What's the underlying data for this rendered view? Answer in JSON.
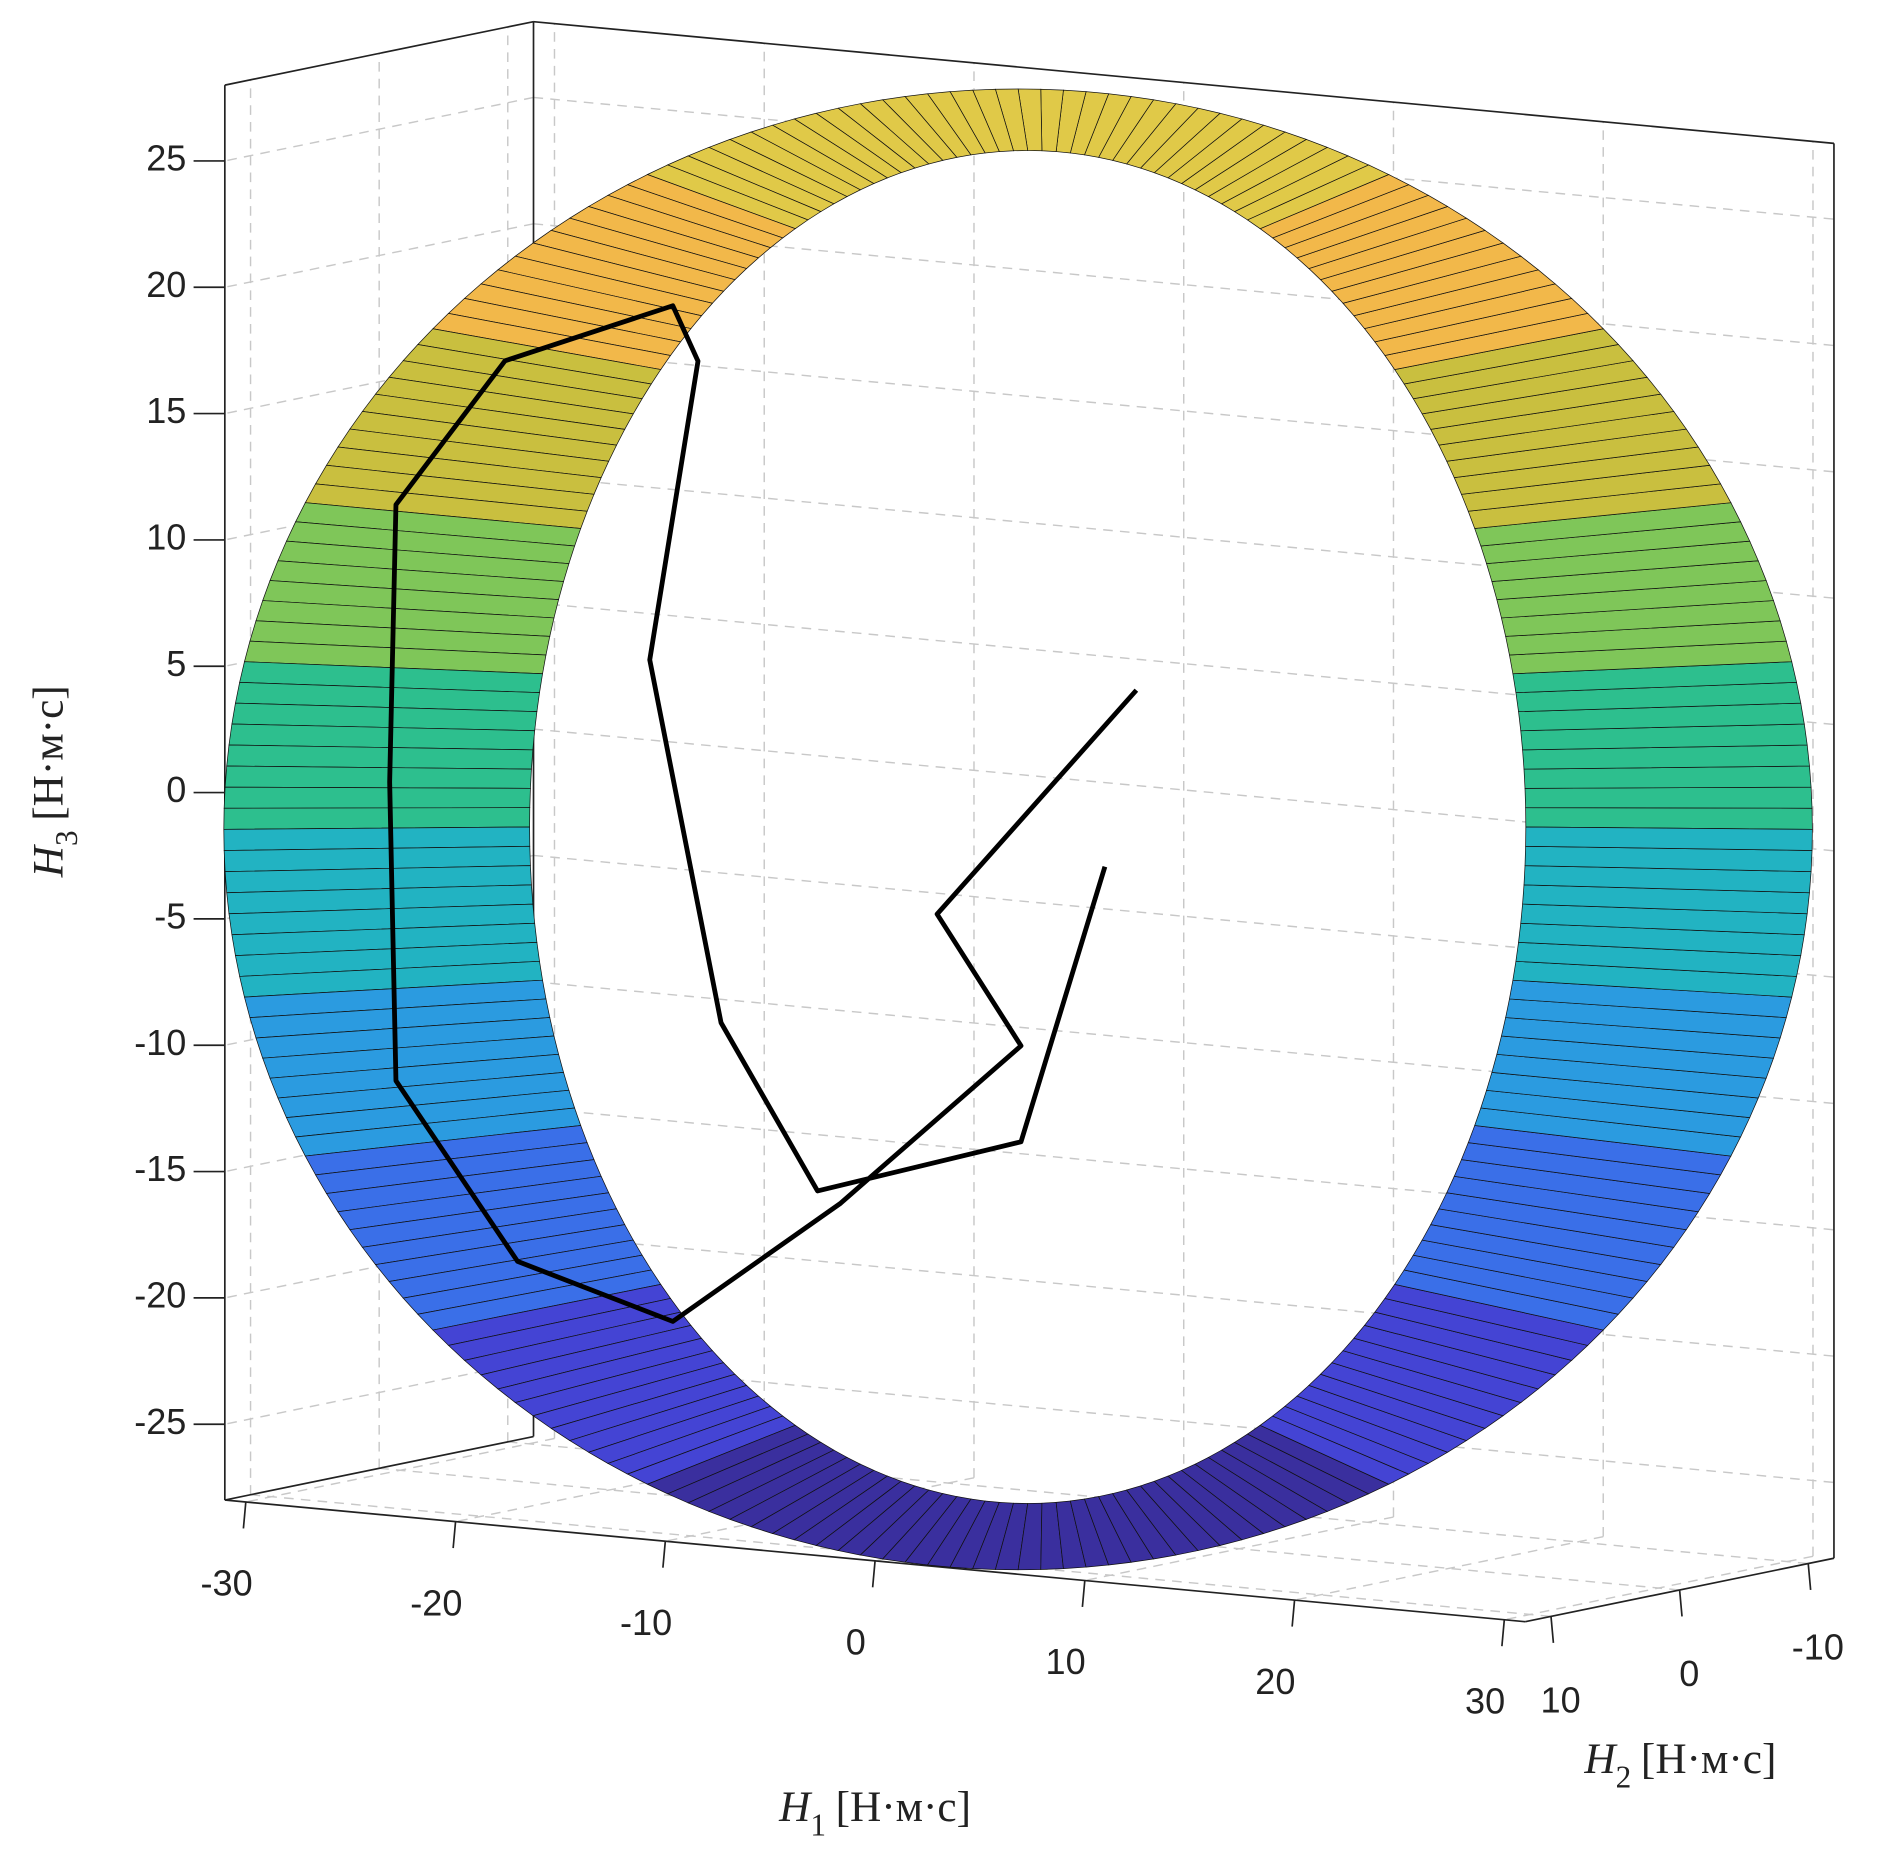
{
  "chart_data": {
    "type": "surface3d",
    "xlabel": {
      "symbol": "H",
      "subscript": "1",
      "unit": "[Н·м·с]"
    },
    "ylabel": {
      "symbol": "H",
      "subscript": "2",
      "unit": "[Н·м·с]"
    },
    "zlabel": {
      "symbol": "H",
      "subscript": "3",
      "unit": "[Н·м·с]"
    },
    "xlim": [
      -31,
      31
    ],
    "ylim": [
      -12,
      12
    ],
    "zlim": [
      -28,
      28
    ],
    "xticks": [
      -30,
      -20,
      -10,
      0,
      10,
      20,
      30
    ],
    "yticks": [
      -10,
      0,
      10
    ],
    "zticks": [
      -25,
      -20,
      -15,
      -10,
      -5,
      0,
      5,
      10,
      15,
      20,
      25
    ],
    "grid": true,
    "surface": {
      "radius": 28,
      "h2lim": [
        -10,
        10
      ],
      "colormap": [
        "#3a2f9e",
        "#4444d4",
        "#3a6fe8",
        "#2b9be0",
        "#22b3c2",
        "#2dbf8e",
        "#7fc659",
        "#c9bf3f",
        "#f2b84a",
        "#e0c948"
      ]
    },
    "trajectory": {
      "color": "#000000",
      "h1": [
        5.1,
        -4.4,
        -0.4,
        -9.0,
        -17.0,
        -24.4,
        -30.2,
        -30.5,
        -30.2,
        -25.0,
        -17.0,
        -15.8,
        -18.1,
        -14.7,
        -10.1,
        -0.4,
        3.6
      ],
      "h3": [
        5.6,
        -4.0,
        -8.9,
        -15.8,
        -21.1,
        -19.3,
        -12.6,
        -0.8,
        10.2,
        16.3,
        19.1,
        17.0,
        5.0,
        -9.1,
        -15.4,
        -12.7,
        -1.5
      ]
    }
  }
}
